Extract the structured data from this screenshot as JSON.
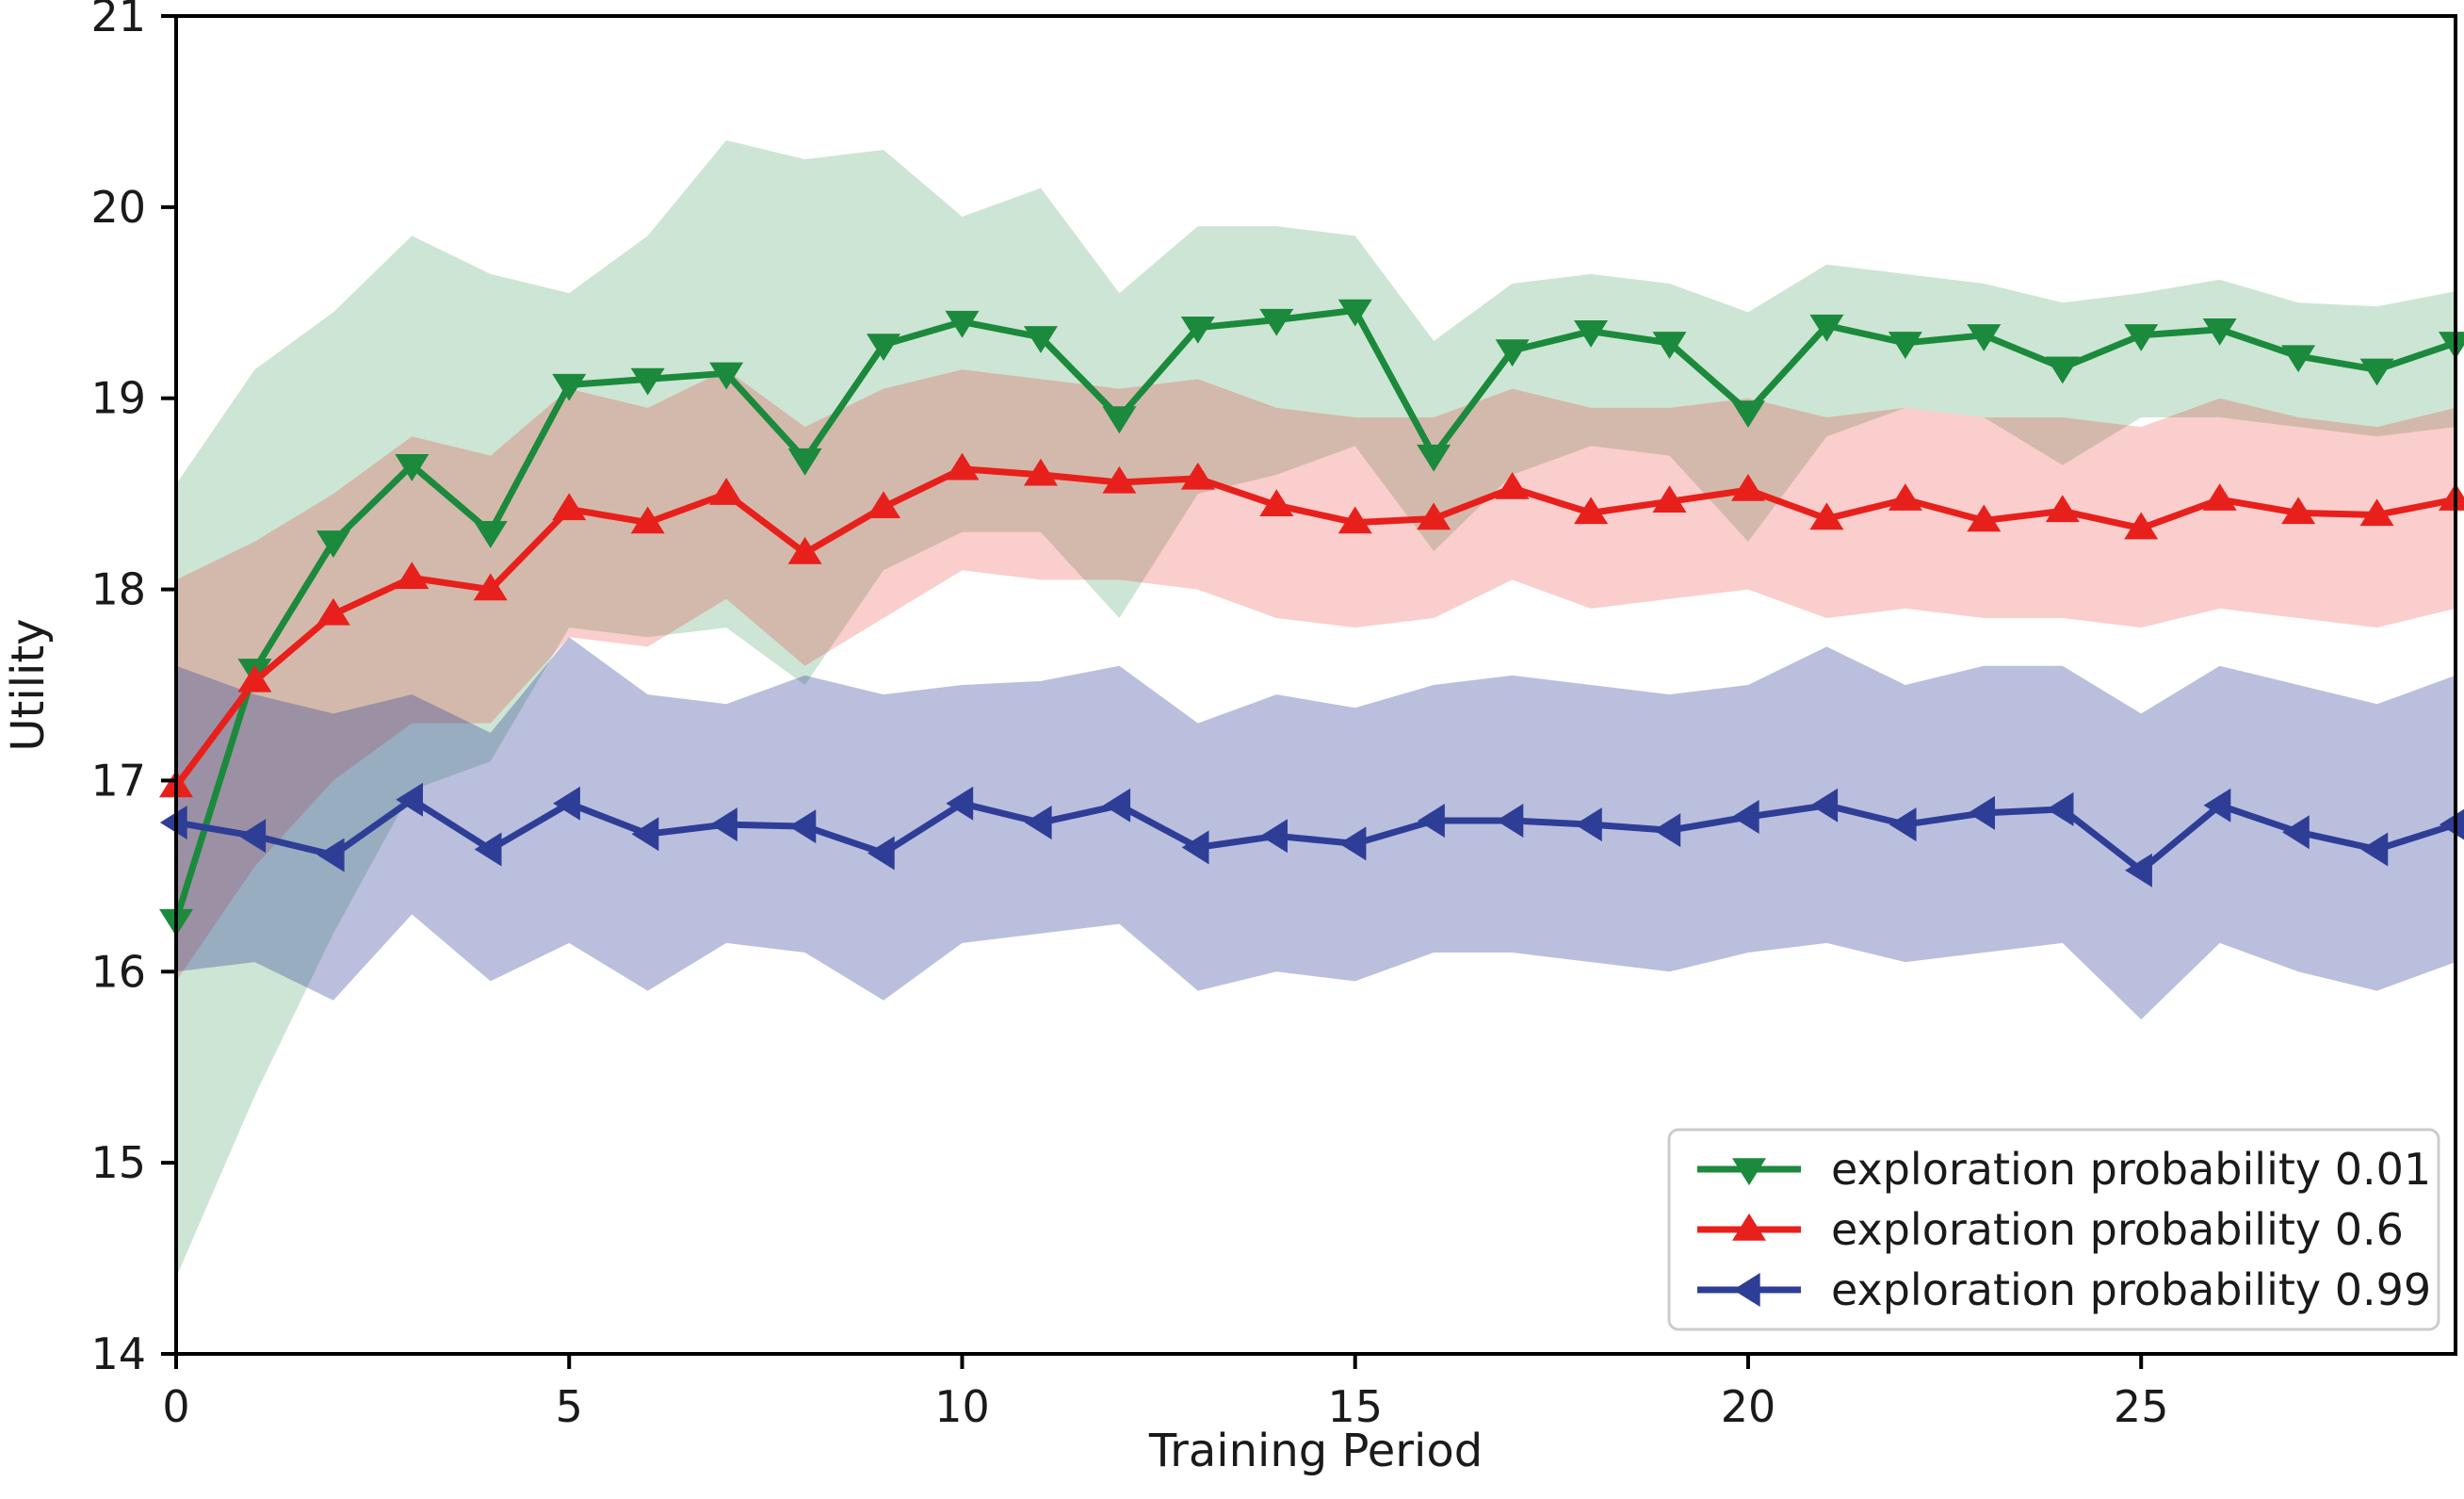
{
  "chart_data": {
    "type": "line",
    "title": "",
    "xlabel": "Training Period",
    "ylabel": "Utility",
    "xlim": [
      0,
      29
    ],
    "ylim": [
      14,
      21
    ],
    "xticks": [
      0,
      5,
      10,
      15,
      20,
      25
    ],
    "yticks": [
      14,
      15,
      16,
      17,
      18,
      19,
      20,
      21
    ],
    "grid": false,
    "legend_position": "lower right",
    "x": [
      0,
      1,
      2,
      3,
      4,
      5,
      6,
      7,
      8,
      9,
      10,
      11,
      12,
      13,
      14,
      15,
      16,
      17,
      18,
      19,
      20,
      21,
      22,
      23,
      24,
      25,
      26,
      27,
      28,
      29
    ],
    "series": [
      {
        "name": "exploration probability 0.01",
        "color": "#1b8a3c",
        "marker": "triangle-down",
        "band_alpha": 0.22,
        "values": [
          16.27,
          17.58,
          18.25,
          18.65,
          18.3,
          19.07,
          19.1,
          19.13,
          18.68,
          19.28,
          19.4,
          19.32,
          18.9,
          19.37,
          19.41,
          19.46,
          18.7,
          19.25,
          19.35,
          19.29,
          18.93,
          19.38,
          19.29,
          19.33,
          19.16,
          19.33,
          19.36,
          19.22,
          19.15,
          19.29
        ],
        "band_upper": [
          18.55,
          19.15,
          19.45,
          19.85,
          19.65,
          19.55,
          19.85,
          20.35,
          20.25,
          20.3,
          19.95,
          20.1,
          19.55,
          19.9,
          19.9,
          19.85,
          19.3,
          19.6,
          19.65,
          19.6,
          19.45,
          19.7,
          19.65,
          19.6,
          19.5,
          19.55,
          19.62,
          19.5,
          19.48,
          19.56
        ],
        "band_lower": [
          14.4,
          15.35,
          16.2,
          16.95,
          17.1,
          17.8,
          17.75,
          17.8,
          17.5,
          18.1,
          18.3,
          18.3,
          17.85,
          18.5,
          18.6,
          18.75,
          18.2,
          18.6,
          18.75,
          18.7,
          18.25,
          18.8,
          18.95,
          18.9,
          18.65,
          18.9,
          18.9,
          18.85,
          18.8,
          18.85
        ]
      },
      {
        "name": "exploration probability 0.6",
        "color": "#e8201c",
        "marker": "triangle-up",
        "band_alpha": 0.22,
        "values": [
          16.97,
          17.52,
          17.87,
          18.06,
          18.0,
          18.42,
          18.35,
          18.5,
          18.19,
          18.43,
          18.63,
          18.6,
          18.56,
          18.58,
          18.44,
          18.35,
          18.37,
          18.53,
          18.4,
          18.46,
          18.52,
          18.37,
          18.47,
          18.36,
          18.41,
          18.32,
          18.47,
          18.4,
          18.39,
          18.47
        ],
        "band_upper": [
          18.05,
          18.25,
          18.5,
          18.8,
          18.7,
          19.05,
          18.95,
          19.15,
          18.85,
          19.05,
          19.15,
          19.1,
          19.05,
          19.1,
          18.95,
          18.9,
          18.9,
          19.05,
          18.95,
          18.95,
          19.0,
          18.9,
          18.95,
          18.9,
          18.9,
          18.85,
          19.0,
          18.9,
          18.85,
          18.95
        ],
        "band_lower": [
          15.95,
          16.55,
          17.0,
          17.3,
          17.3,
          17.75,
          17.7,
          17.95,
          17.6,
          17.85,
          18.1,
          18.05,
          18.05,
          18.0,
          17.85,
          17.8,
          17.85,
          18.05,
          17.9,
          17.95,
          18.0,
          17.85,
          17.9,
          17.85,
          17.85,
          17.8,
          17.9,
          17.85,
          17.8,
          17.9
        ]
      },
      {
        "name": "exploration probability 0.99",
        "color": "#2e3e97",
        "marker": "triangle-left",
        "band_alpha": 0.33,
        "values": [
          16.78,
          16.71,
          16.61,
          16.9,
          16.64,
          16.88,
          16.72,
          16.77,
          16.76,
          16.62,
          16.88,
          16.78,
          16.87,
          16.65,
          16.71,
          16.67,
          16.79,
          16.79,
          16.77,
          16.74,
          16.81,
          16.87,
          16.77,
          16.83,
          16.85,
          16.53,
          16.87,
          16.73,
          16.64,
          16.77
        ],
        "band_upper": [
          17.6,
          17.45,
          17.35,
          17.45,
          17.25,
          17.75,
          17.45,
          17.4,
          17.55,
          17.45,
          17.5,
          17.52,
          17.6,
          17.3,
          17.45,
          17.38,
          17.5,
          17.55,
          17.5,
          17.45,
          17.5,
          17.7,
          17.5,
          17.6,
          17.6,
          17.35,
          17.6,
          17.5,
          17.4,
          17.55
        ],
        "band_lower": [
          16.0,
          16.05,
          15.85,
          16.3,
          15.95,
          16.15,
          15.9,
          16.15,
          16.1,
          15.85,
          16.15,
          16.2,
          16.25,
          15.9,
          16.0,
          15.95,
          16.1,
          16.1,
          16.05,
          16.0,
          16.1,
          16.15,
          16.05,
          16.1,
          16.15,
          15.75,
          16.15,
          16.0,
          15.9,
          16.05
        ]
      }
    ],
    "legend": {
      "labels": [
        "exploration probability 0.01",
        "exploration probability 0.6",
        "exploration probability 0.99"
      ],
      "border_color": "#cccccc",
      "background": "#ffffff"
    },
    "text_color": "#1a1a1a",
    "spine_color": "#000000"
  }
}
